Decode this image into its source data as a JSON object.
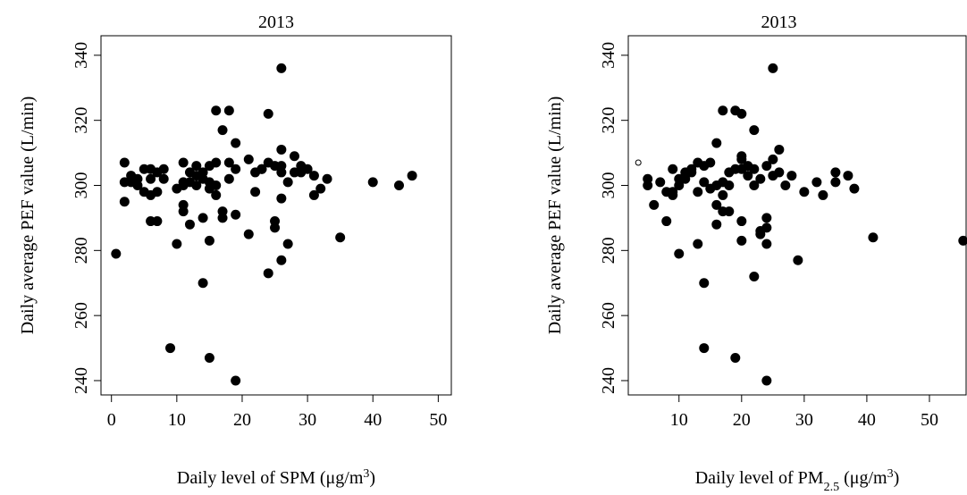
{
  "chart_data": [
    {
      "type": "scatter",
      "title": "2013",
      "ylabel": "Daily average PEF value (L/min)",
      "xlabel_parts": [
        "Daily level of SPM (μg/m",
        "3",
        ")"
      ],
      "xlim": [
        -1.6,
        52
      ],
      "ylim": [
        235.6,
        346
      ],
      "xticks": [
        0,
        10,
        20,
        30,
        40,
        50
      ],
      "yticks": [
        240,
        260,
        280,
        300,
        320,
        340
      ],
      "color": "#000000",
      "x": [
        0.7,
        2,
        2,
        2,
        3,
        3,
        4,
        4,
        5,
        5,
        6,
        6,
        6,
        6,
        7,
        7,
        7,
        8,
        8,
        9,
        10,
        10,
        11,
        11,
        11,
        11,
        11,
        12,
        12,
        12,
        13,
        13,
        13,
        14,
        14,
        14,
        14,
        15,
        15,
        15,
        15,
        15,
        16,
        16,
        16,
        16,
        17,
        17,
        17,
        18,
        18,
        18,
        19,
        19,
        19,
        19,
        21,
        21,
        22,
        22,
        23,
        23,
        24,
        24,
        24,
        25,
        25,
        25,
        26,
        26,
        26,
        26,
        26,
        26,
        27,
        27,
        28,
        28,
        29,
        29,
        30,
        31,
        31,
        32,
        33,
        35,
        40,
        44,
        46
      ],
      "y": [
        279,
        295,
        301,
        307,
        301,
        303,
        302,
        300,
        298,
        305,
        297,
        289,
        302,
        305,
        289,
        298,
        304,
        305,
        302,
        250,
        282,
        299,
        300,
        301,
        307,
        294,
        292,
        288,
        301,
        304,
        300,
        303,
        306,
        302,
        290,
        270,
        304,
        306,
        283,
        299,
        301,
        247,
        297,
        300,
        307,
        323,
        292,
        290,
        317,
        323,
        302,
        307,
        313,
        305,
        240,
        291,
        308,
        285,
        298,
        304,
        305,
        305,
        322,
        307,
        273,
        289,
        287,
        306,
        336,
        311,
        304,
        277,
        296,
        306,
        282,
        301,
        309,
        304,
        306,
        304,
        305,
        297,
        303,
        299,
        302,
        284,
        301,
        300,
        303
      ]
    },
    {
      "type": "scatter",
      "title": "2013",
      "ylabel": "Daily average PEF value (L/min)",
      "xlabel_parts": [
        "Daily level of PM",
        "2.5",
        " (μg/m",
        "3",
        ")"
      ],
      "xlim": [
        1.9,
        56
      ],
      "ylim": [
        235.6,
        346
      ],
      "xticks": [
        10,
        20,
        30,
        40,
        50
      ],
      "yticks": [
        240,
        260,
        280,
        300,
        320,
        340
      ],
      "color": "#000000",
      "x": [
        5,
        5,
        6,
        7,
        8,
        8,
        9,
        9,
        9,
        10,
        10,
        10,
        11,
        11,
        12,
        12,
        13,
        13,
        13,
        14,
        14,
        14,
        14,
        15,
        15,
        16,
        16,
        16,
        16,
        17,
        17,
        17,
        17,
        18,
        18,
        18,
        19,
        19,
        19,
        20,
        20,
        20,
        20,
        20,
        20,
        21,
        21,
        22,
        22,
        22,
        22,
        23,
        23,
        23,
        24,
        24,
        24,
        24,
        24,
        25,
        25,
        25,
        26,
        26,
        27,
        28,
        29,
        30,
        32,
        33,
        35,
        35,
        37,
        38,
        41,
        55.4
      ],
      "y": [
        302,
        300,
        294,
        301,
        298,
        289,
        305,
        297,
        298,
        302,
        279,
        300,
        304,
        302,
        305,
        304,
        282,
        298,
        307,
        306,
        301,
        270,
        250,
        307,
        299,
        313,
        300,
        288,
        294,
        323,
        301,
        297,
        292,
        304,
        292,
        300,
        323,
        305,
        247,
        322,
        308,
        309,
        305,
        289,
        283,
        306,
        303,
        317,
        305,
        300,
        272,
        302,
        285,
        286,
        306,
        290,
        287,
        282,
        240,
        336,
        308,
        303,
        311,
        304,
        300,
        303,
        277,
        298,
        301,
        297,
        304,
        301,
        303,
        299,
        284,
        283
      ],
      "x_open": [
        3.5
      ],
      "y_open": [
        307
      ]
    }
  ]
}
